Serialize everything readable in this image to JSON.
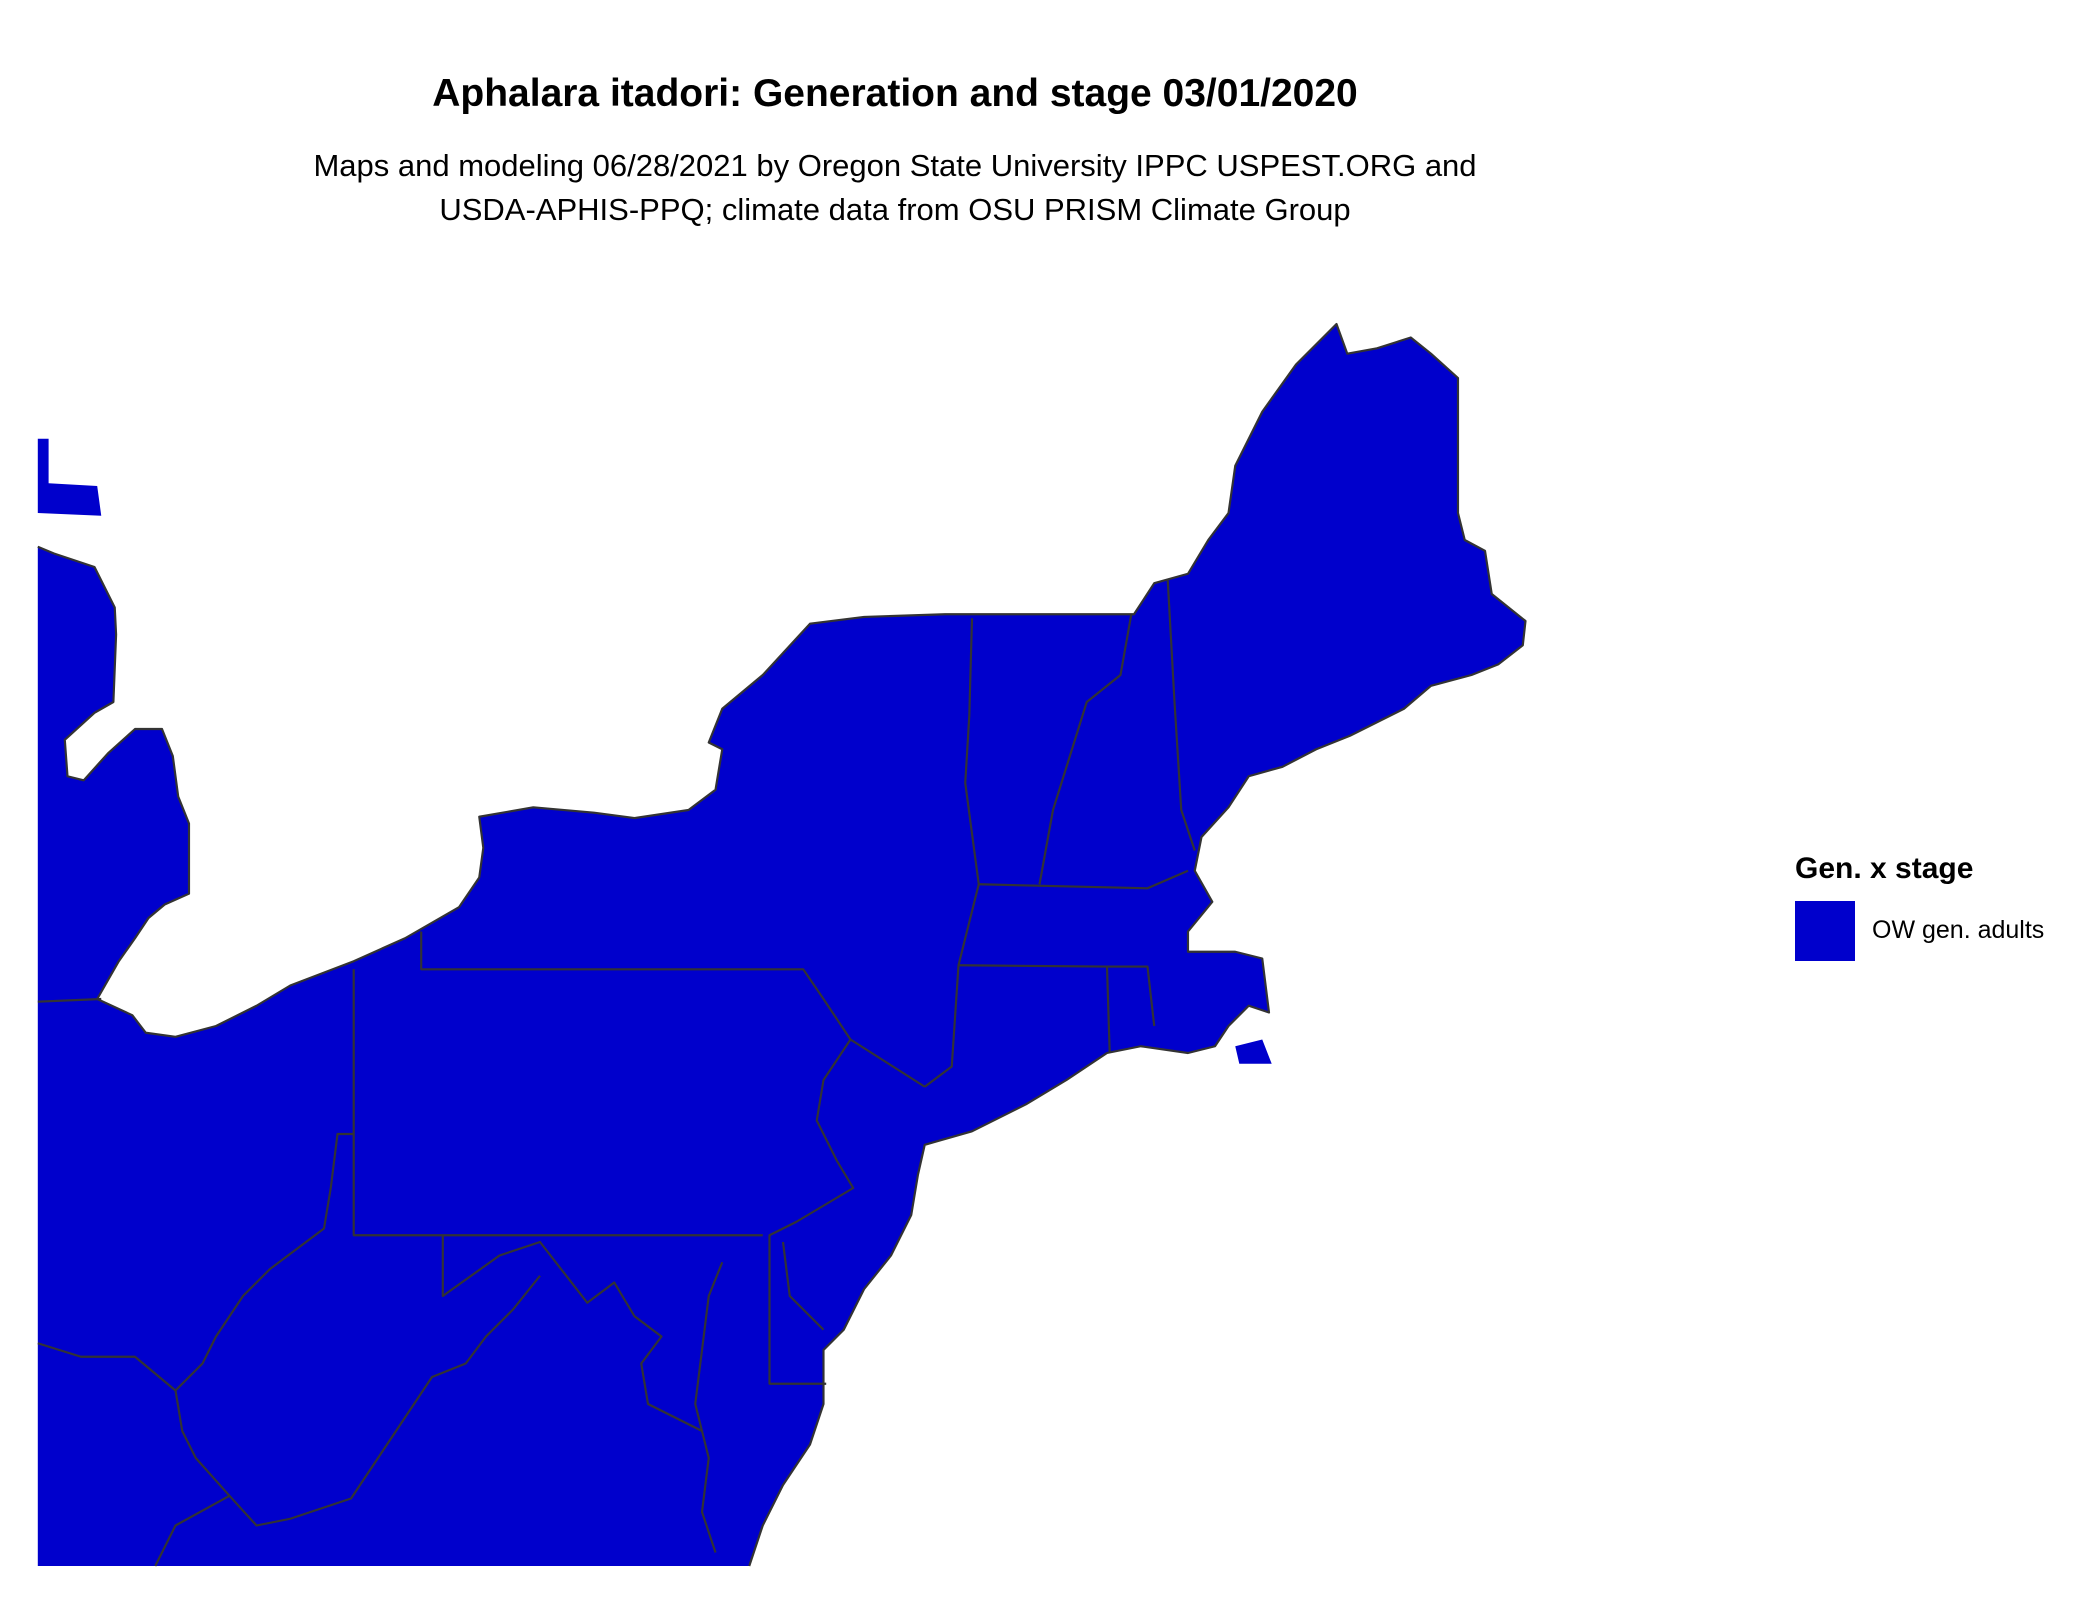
{
  "title": "Aphalara itadori: Generation and stage 03/01/2020",
  "subtitle_line1": "Maps and modeling 06/28/2021 by Oregon State University IPPC USPEST.ORG and",
  "subtitle_line2": "USDA-APHIS-PPQ; climate data from OSU PRISM Climate Group",
  "map": {
    "region": "Northeastern United States",
    "fill_color": "#0000cc",
    "border_color": "#333333"
  },
  "legend": {
    "title": "Gen. x stage",
    "items": [
      {
        "label": "OW gen. adults",
        "color": "#0000cc"
      }
    ]
  }
}
